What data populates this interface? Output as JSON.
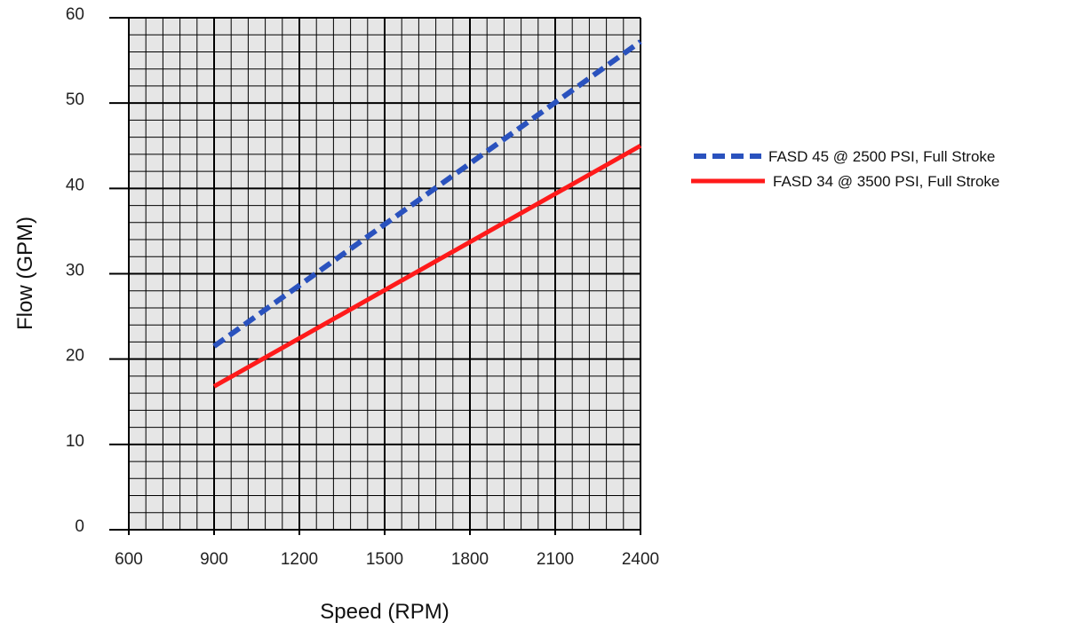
{
  "chart_data": {
    "type": "line",
    "xlabel": "Speed (RPM)",
    "ylabel": "Flow (GPM)",
    "xlim": [
      600,
      2400
    ],
    "ylim": [
      0,
      60
    ],
    "x_ticks": [
      600,
      900,
      1200,
      1500,
      1800,
      2100,
      2400
    ],
    "y_ticks": [
      0,
      10,
      20,
      30,
      40,
      50,
      60
    ],
    "grid": true,
    "minor_grid_per_major_x": 5,
    "minor_grid_per_major_y": 5,
    "legend_position": "right",
    "series": [
      {
        "name": "FASD 45 @ 2500 PSI, Full Stroke",
        "color": "#2a52be",
        "style": "dashed",
        "x": [
          900,
          2400
        ],
        "y": [
          21.5,
          57.2
        ]
      },
      {
        "name": "FASD 34 @ 3500 PSI, Full Stroke",
        "color": "#ff1a1a",
        "style": "solid",
        "x": [
          900,
          2400
        ],
        "y": [
          16.8,
          45.0
        ]
      }
    ]
  }
}
